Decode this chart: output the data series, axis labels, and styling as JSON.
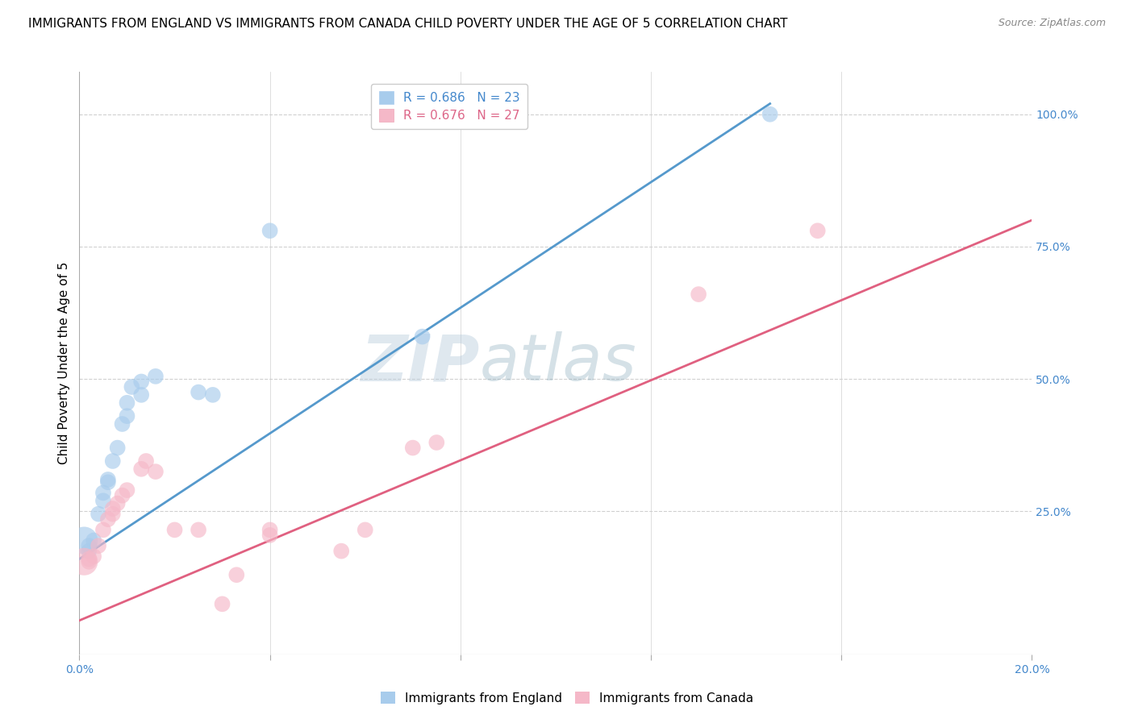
{
  "title": "IMMIGRANTS FROM ENGLAND VS IMMIGRANTS FROM CANADA CHILD POVERTY UNDER THE AGE OF 5 CORRELATION CHART",
  "source": "Source: ZipAtlas.com",
  "ylabel": "Child Poverty Under the Age of 5",
  "x_min": 0.0,
  "x_max": 0.2,
  "y_min": -0.02,
  "y_max": 1.08,
  "right_yticks": [
    0.25,
    0.5,
    0.75,
    1.0
  ],
  "right_yticklabels": [
    "25.0%",
    "50.0%",
    "75.0%",
    "100.0%"
  ],
  "xticks": [
    0.0,
    0.04,
    0.08,
    0.12,
    0.16,
    0.2
  ],
  "england_R": 0.686,
  "england_N": 23,
  "canada_R": 0.676,
  "canada_N": 27,
  "england_color": "#a8ccec",
  "canada_color": "#f5b8c8",
  "england_line_color": "#5599cc",
  "canada_line_color": "#e06080",
  "england_scatter": [
    [
      0.001,
      0.195
    ],
    [
      0.002,
      0.175
    ],
    [
      0.002,
      0.185
    ],
    [
      0.003,
      0.195
    ],
    [
      0.004,
      0.245
    ],
    [
      0.005,
      0.27
    ],
    [
      0.005,
      0.285
    ],
    [
      0.006,
      0.305
    ],
    [
      0.006,
      0.31
    ],
    [
      0.007,
      0.345
    ],
    [
      0.008,
      0.37
    ],
    [
      0.009,
      0.415
    ],
    [
      0.01,
      0.43
    ],
    [
      0.01,
      0.455
    ],
    [
      0.011,
      0.485
    ],
    [
      0.013,
      0.495
    ],
    [
      0.013,
      0.47
    ],
    [
      0.016,
      0.505
    ],
    [
      0.025,
      0.475
    ],
    [
      0.028,
      0.47
    ],
    [
      0.04,
      0.78
    ],
    [
      0.072,
      0.58
    ],
    [
      0.145,
      1.0
    ]
  ],
  "canada_scatter": [
    [
      0.001,
      0.155
    ],
    [
      0.002,
      0.155
    ],
    [
      0.002,
      0.16
    ],
    [
      0.003,
      0.165
    ],
    [
      0.004,
      0.185
    ],
    [
      0.005,
      0.215
    ],
    [
      0.006,
      0.235
    ],
    [
      0.007,
      0.245
    ],
    [
      0.007,
      0.255
    ],
    [
      0.008,
      0.265
    ],
    [
      0.009,
      0.28
    ],
    [
      0.01,
      0.29
    ],
    [
      0.013,
      0.33
    ],
    [
      0.014,
      0.345
    ],
    [
      0.016,
      0.325
    ],
    [
      0.02,
      0.215
    ],
    [
      0.025,
      0.215
    ],
    [
      0.03,
      0.075
    ],
    [
      0.033,
      0.13
    ],
    [
      0.04,
      0.205
    ],
    [
      0.04,
      0.215
    ],
    [
      0.055,
      0.175
    ],
    [
      0.06,
      0.215
    ],
    [
      0.07,
      0.37
    ],
    [
      0.075,
      0.38
    ],
    [
      0.13,
      0.66
    ],
    [
      0.155,
      0.78
    ]
  ],
  "england_line_pts": [
    [
      0.0,
      0.16
    ],
    [
      0.145,
      1.02
    ]
  ],
  "canada_line_pts": [
    [
      -0.005,
      0.025
    ],
    [
      0.2,
      0.8
    ]
  ],
  "watermark_zip": "ZIP",
  "watermark_atlas": "atlas",
  "title_fontsize": 11,
  "axis_label_fontsize": 11,
  "tick_fontsize": 10,
  "legend_fontsize": 11,
  "source_fontsize": 9,
  "background_color": "#ffffff",
  "grid_color": "#d0d0d0",
  "right_tick_color": "#4488cc",
  "bottom_tick_color": "#4488cc",
  "legend_R_color_eng": "#4488cc",
  "legend_R_color_can": "#dd6688",
  "legend_N_color_eng": "#4488cc",
  "legend_N_color_can": "#dd6688"
}
